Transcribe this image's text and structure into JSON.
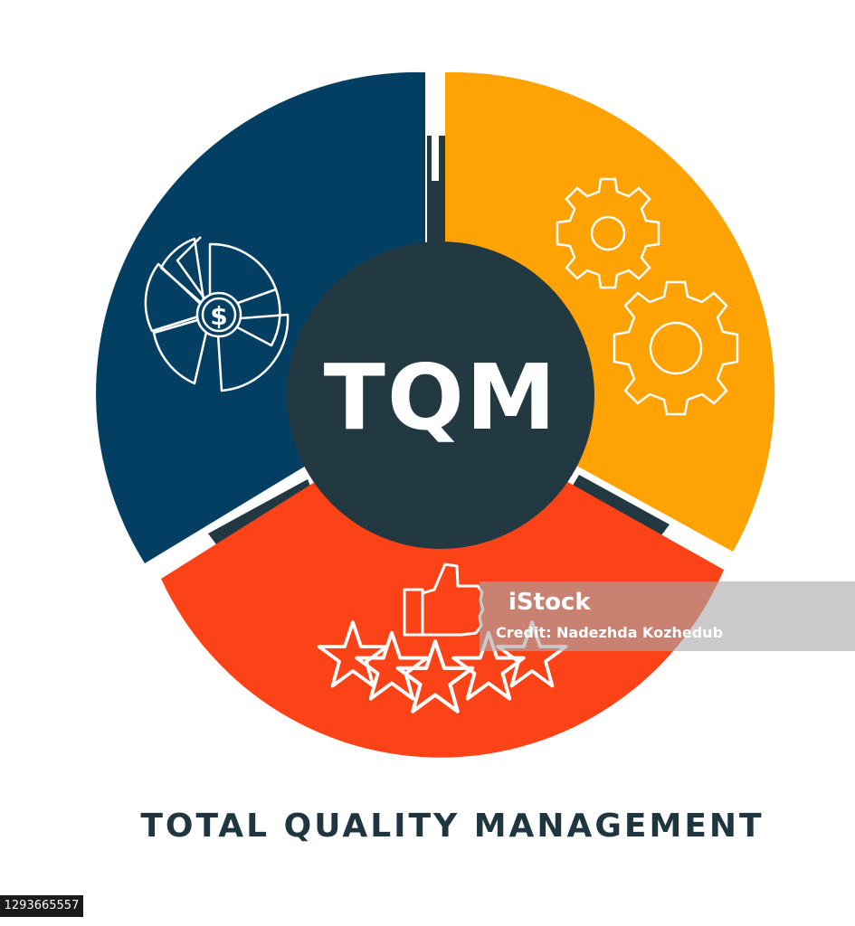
{
  "diagram": {
    "center_label": "TQM",
    "caption": "TOTAL QUALITY MANAGEMENT",
    "segments": [
      {
        "name": "finance",
        "color": "#033f63",
        "icon": "dollar-pie-chart-icon"
      },
      {
        "name": "process",
        "color": "#fea303",
        "icon": "gears-icon"
      },
      {
        "name": "customer-satisfaction",
        "color": "#fc4217",
        "icon": "thumbs-up-stars-icon"
      }
    ],
    "center_color": "#233942",
    "caption_color": "#1f3540"
  },
  "watermark": {
    "logo": "iStock",
    "credit": "Credit: Nadezhda Kozhedub",
    "stock_id": "1293665557"
  }
}
